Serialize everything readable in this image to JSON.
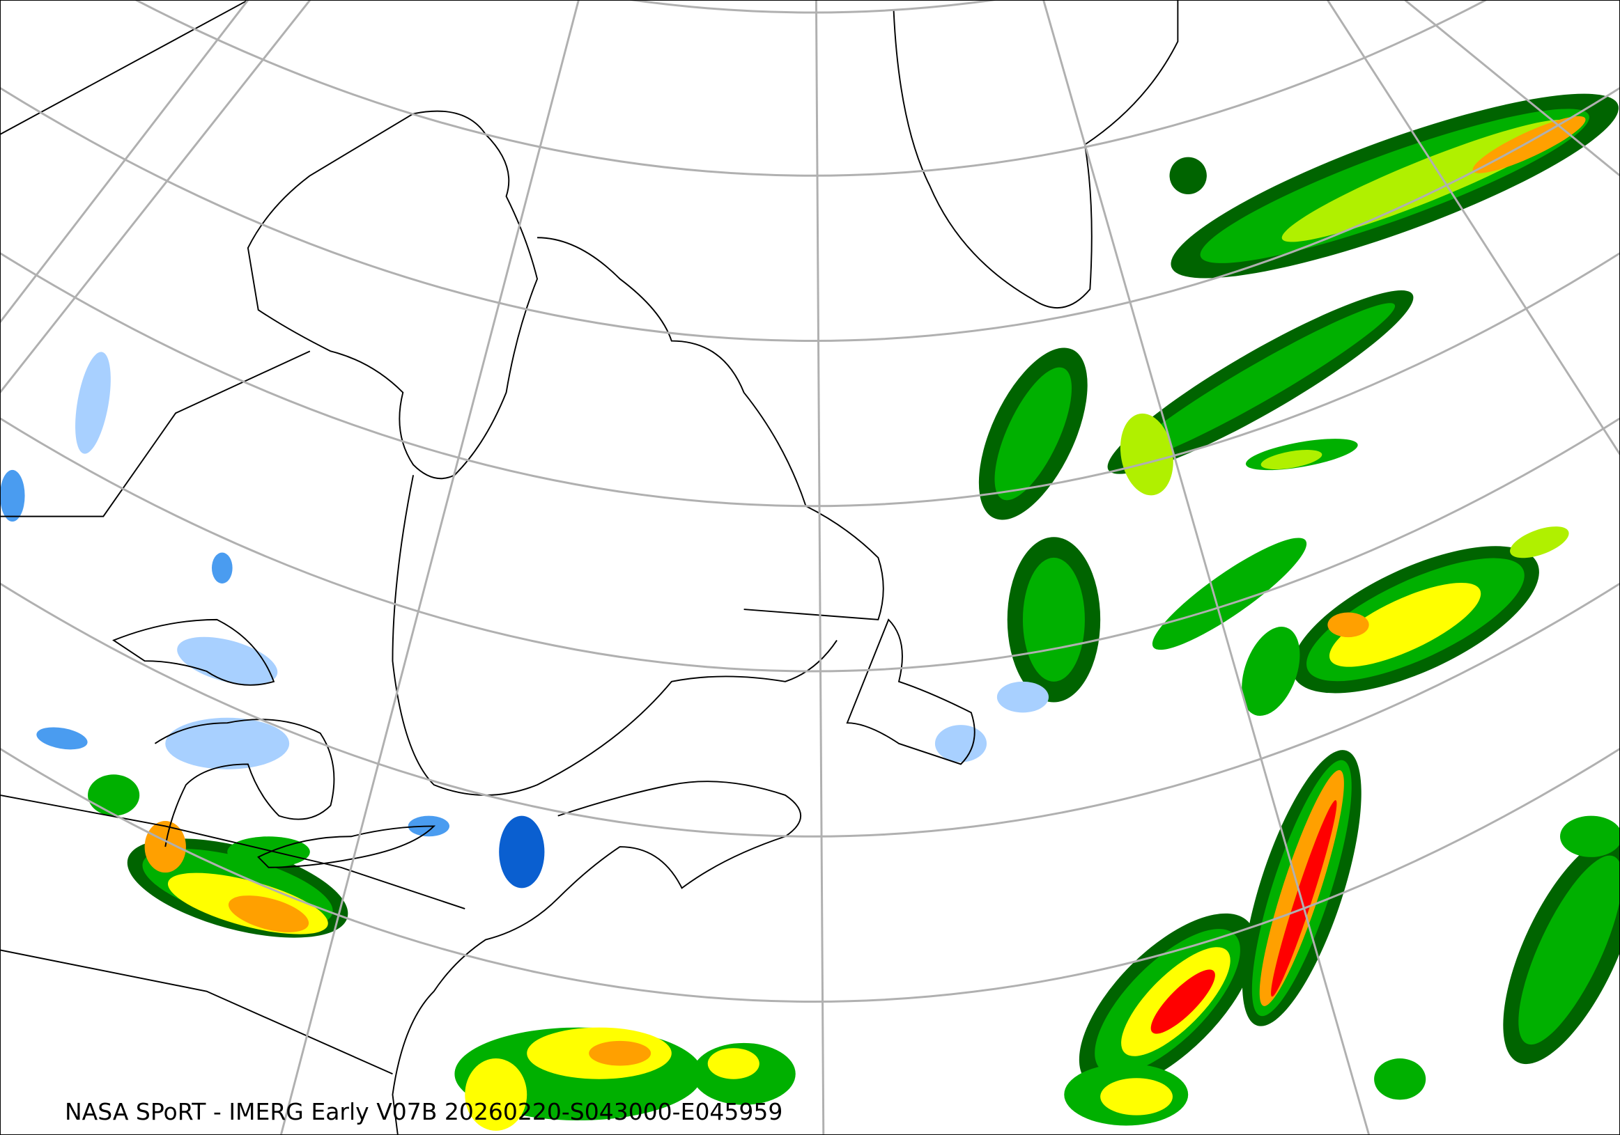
{
  "caption": "NASA SPoRT - IMERG Early V07B 20260220-S043000-E045959",
  "colors": {
    "graticule": "#b0b0b0",
    "coastline": "#000000",
    "rain_light_blue": "#a8d0ff",
    "rain_blue": "#4a9cf0",
    "rain_dark_blue": "#0a5fd0",
    "rain_dark_green": "#006400",
    "rain_green": "#00b000",
    "rain_light_green": "#40e000",
    "rain_yellow_green": "#b0f000",
    "rain_yellow": "#ffff00",
    "rain_orange": "#ffa000",
    "rain_red": "#ff0000",
    "rain_magenta": "#ff40ff"
  }
}
